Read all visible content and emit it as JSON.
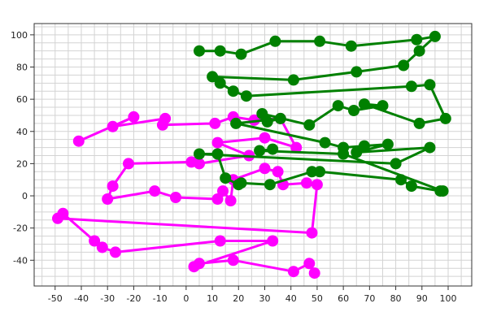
{
  "chart_data": {
    "type": "scatter",
    "title": "",
    "xlabel": "",
    "ylabel": "",
    "xlim": [
      -58,
      109
    ],
    "ylim": [
      -56,
      107
    ],
    "x_ticks": [
      -50,
      -40,
      -30,
      -20,
      -10,
      0,
      10,
      20,
      30,
      40,
      50,
      60,
      70,
      80,
      90,
      100
    ],
    "y_ticks": [
      -40,
      -20,
      0,
      20,
      40,
      60,
      80,
      100
    ],
    "x_tick_labels": [
      "-50",
      "-40",
      "-30",
      "-20",
      "-10",
      "0",
      "10",
      "20",
      "30",
      "40",
      "50",
      "60",
      "70",
      "80",
      "90",
      "100"
    ],
    "y_tick_labels": [
      "-40",
      "-20",
      "0",
      "20",
      "40",
      "60",
      "80",
      "100"
    ],
    "grid": true,
    "legend": "none",
    "series": [
      {
        "color": "#ff00ff",
        "points": [
          [
            -41,
            34
          ],
          [
            -20,
            49
          ],
          [
            -28,
            43
          ],
          [
            -8,
            48
          ],
          [
            -9,
            44
          ],
          [
            11,
            45
          ],
          [
            18,
            49
          ],
          [
            26,
            47
          ],
          [
            36,
            48
          ],
          [
            42,
            30
          ],
          [
            30,
            36
          ],
          [
            12,
            33
          ],
          [
            24,
            25
          ],
          [
            5,
            20
          ],
          [
            2,
            21
          ],
          [
            -22,
            20
          ],
          [
            -28,
            6
          ],
          [
            -30,
            -2
          ],
          [
            -12,
            3
          ],
          [
            -4,
            -1
          ],
          [
            12,
            -2
          ],
          [
            14,
            3
          ],
          [
            17,
            -3
          ],
          [
            18,
            10
          ],
          [
            30,
            17
          ],
          [
            35,
            15
          ],
          [
            37,
            7
          ],
          [
            46,
            8
          ],
          [
            50,
            7
          ],
          [
            48,
            -23
          ],
          [
            -49,
            -14
          ],
          [
            -47,
            -11
          ],
          [
            -35,
            -28
          ],
          [
            -32,
            -32
          ],
          [
            -27,
            -35
          ],
          [
            13,
            -28
          ],
          [
            33,
            -28
          ],
          [
            3,
            -44
          ],
          [
            5,
            -42
          ],
          [
            18,
            -40
          ],
          [
            41,
            -47
          ],
          [
            47,
            -42
          ],
          [
            49,
            -48
          ]
        ]
      },
      {
        "color": "#008000",
        "points": [
          [
            5,
            90
          ],
          [
            13,
            90
          ],
          [
            21,
            88
          ],
          [
            34,
            96
          ],
          [
            51,
            96
          ],
          [
            63,
            93
          ],
          [
            88,
            97
          ],
          [
            95,
            99
          ],
          [
            89,
            90
          ],
          [
            83,
            81
          ],
          [
            65,
            77
          ],
          [
            41,
            72
          ],
          [
            10,
            74
          ],
          [
            13,
            70
          ],
          [
            18,
            65
          ],
          [
            23,
            62
          ],
          [
            86,
            68
          ],
          [
            93,
            69
          ],
          [
            99,
            48
          ],
          [
            89,
            45
          ],
          [
            68,
            57
          ],
          [
            75,
            56
          ],
          [
            64,
            53
          ],
          [
            58,
            56
          ],
          [
            47,
            44
          ],
          [
            29,
            51
          ],
          [
            31,
            46
          ],
          [
            36,
            48
          ],
          [
            19,
            45
          ],
          [
            53,
            33
          ],
          [
            60,
            30
          ],
          [
            68,
            31
          ],
          [
            77,
            32
          ],
          [
            65,
            27
          ],
          [
            93,
            30
          ],
          [
            80,
            20
          ],
          [
            5,
            26
          ],
          [
            12,
            26
          ],
          [
            15,
            11
          ],
          [
            20,
            7
          ],
          [
            21,
            8
          ],
          [
            32,
            7
          ],
          [
            48,
            15
          ],
          [
            51,
            15
          ],
          [
            82,
            10
          ],
          [
            86,
            6
          ],
          [
            97,
            3
          ],
          [
            98,
            3
          ],
          [
            60,
            26
          ],
          [
            28,
            28
          ],
          [
            33,
            29
          ]
        ]
      }
    ]
  }
}
